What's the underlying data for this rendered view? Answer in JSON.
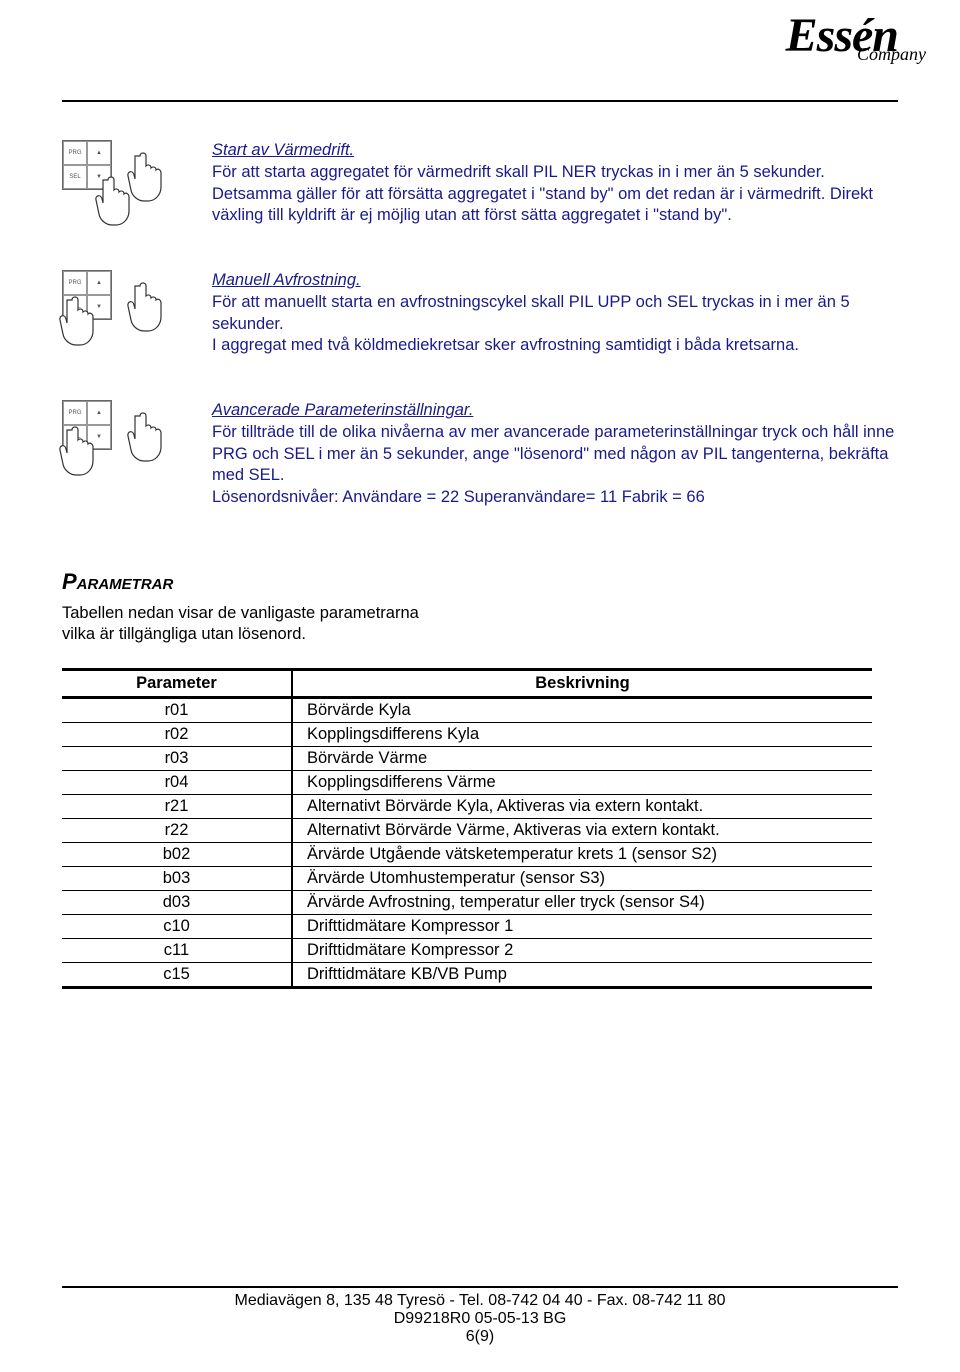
{
  "logo": {
    "main": "Essén",
    "sub": "Company"
  },
  "sections": [
    {
      "title": "Start av Värmedrift.",
      "body": "För att starta aggregatet för värmedrift skall PIL NER tryckas in i mer än 5 sekunder. Detsamma gäller för att försätta aggregatet i \"stand by\" om det redan är i värmedrift. Direkt växling till kyldrift är ej möjlig utan att först sätta aggregatet i \"stand by\"."
    },
    {
      "title": "Manuell Avfrostning.",
      "body": "För att manuellt starta en avfrostningscykel skall PIL UPP och SEL tryckas in i mer än 5 sekunder.\nI aggregat med två köldmediekretsar sker avfrostning samtidigt i båda kretsarna."
    },
    {
      "title": "Avancerade Parameterinställningar.",
      "body": "För tillträde till de olika nivåerna av mer avancerade parameterinställningar tryck och håll inne PRG och SEL i mer än 5 sekunder, ange \"lösenord\" med någon av PIL tangenterna, bekräfta med SEL.\nLösenordsnivåer: Användare = 22    Superanvändare= 11   Fabrik = 66"
    }
  ],
  "params": {
    "heading": "Parametrar",
    "intro": "Tabellen nedan visar de vanligaste parametrarna vilka är tillgängliga utan lösenord.",
    "col_param": "Parameter",
    "col_desc": "Beskrivning",
    "rows": [
      {
        "p": "r01",
        "d": "Börvärde Kyla"
      },
      {
        "p": "r02",
        "d": "Kopplingsdifferens Kyla"
      },
      {
        "p": "r03",
        "d": "Börvärde Värme"
      },
      {
        "p": "r04",
        "d": "Kopplingsdifferens Värme"
      },
      {
        "p": "r21",
        "d": "Alternativt Börvärde Kyla, Aktiveras via extern kontakt."
      },
      {
        "p": "r22",
        "d": "Alternativt Börvärde Värme, Aktiveras via extern kontakt."
      },
      {
        "p": "b02",
        "d": "Ärvärde Utgående vätsketemperatur krets 1 (sensor S2)"
      },
      {
        "p": "b03",
        "d": "Ärvärde Utomhustemperatur (sensor S3)"
      },
      {
        "p": "d03",
        "d": "Ärvärde Avfrostning, temperatur eller tryck (sensor S4)"
      },
      {
        "p": "c10",
        "d": "Drifttidmätare Kompressor 1"
      },
      {
        "p": "c11",
        "d": "Drifttidmätare Kompressor 2"
      },
      {
        "p": "c15",
        "d": "Drifttidmätare KB/VB Pump"
      }
    ]
  },
  "footer": {
    "line1": "Mediavägen 8, 135 48  Tyresö - Tel. 08-742 04 40 - Fax. 08-742 11 80",
    "line2": "D99218R0 05-05-13 BG",
    "page": "6(9)"
  },
  "colors": {
    "blue_text": "#1a1a8a",
    "black": "#000000",
    "bg": "#ffffff"
  }
}
